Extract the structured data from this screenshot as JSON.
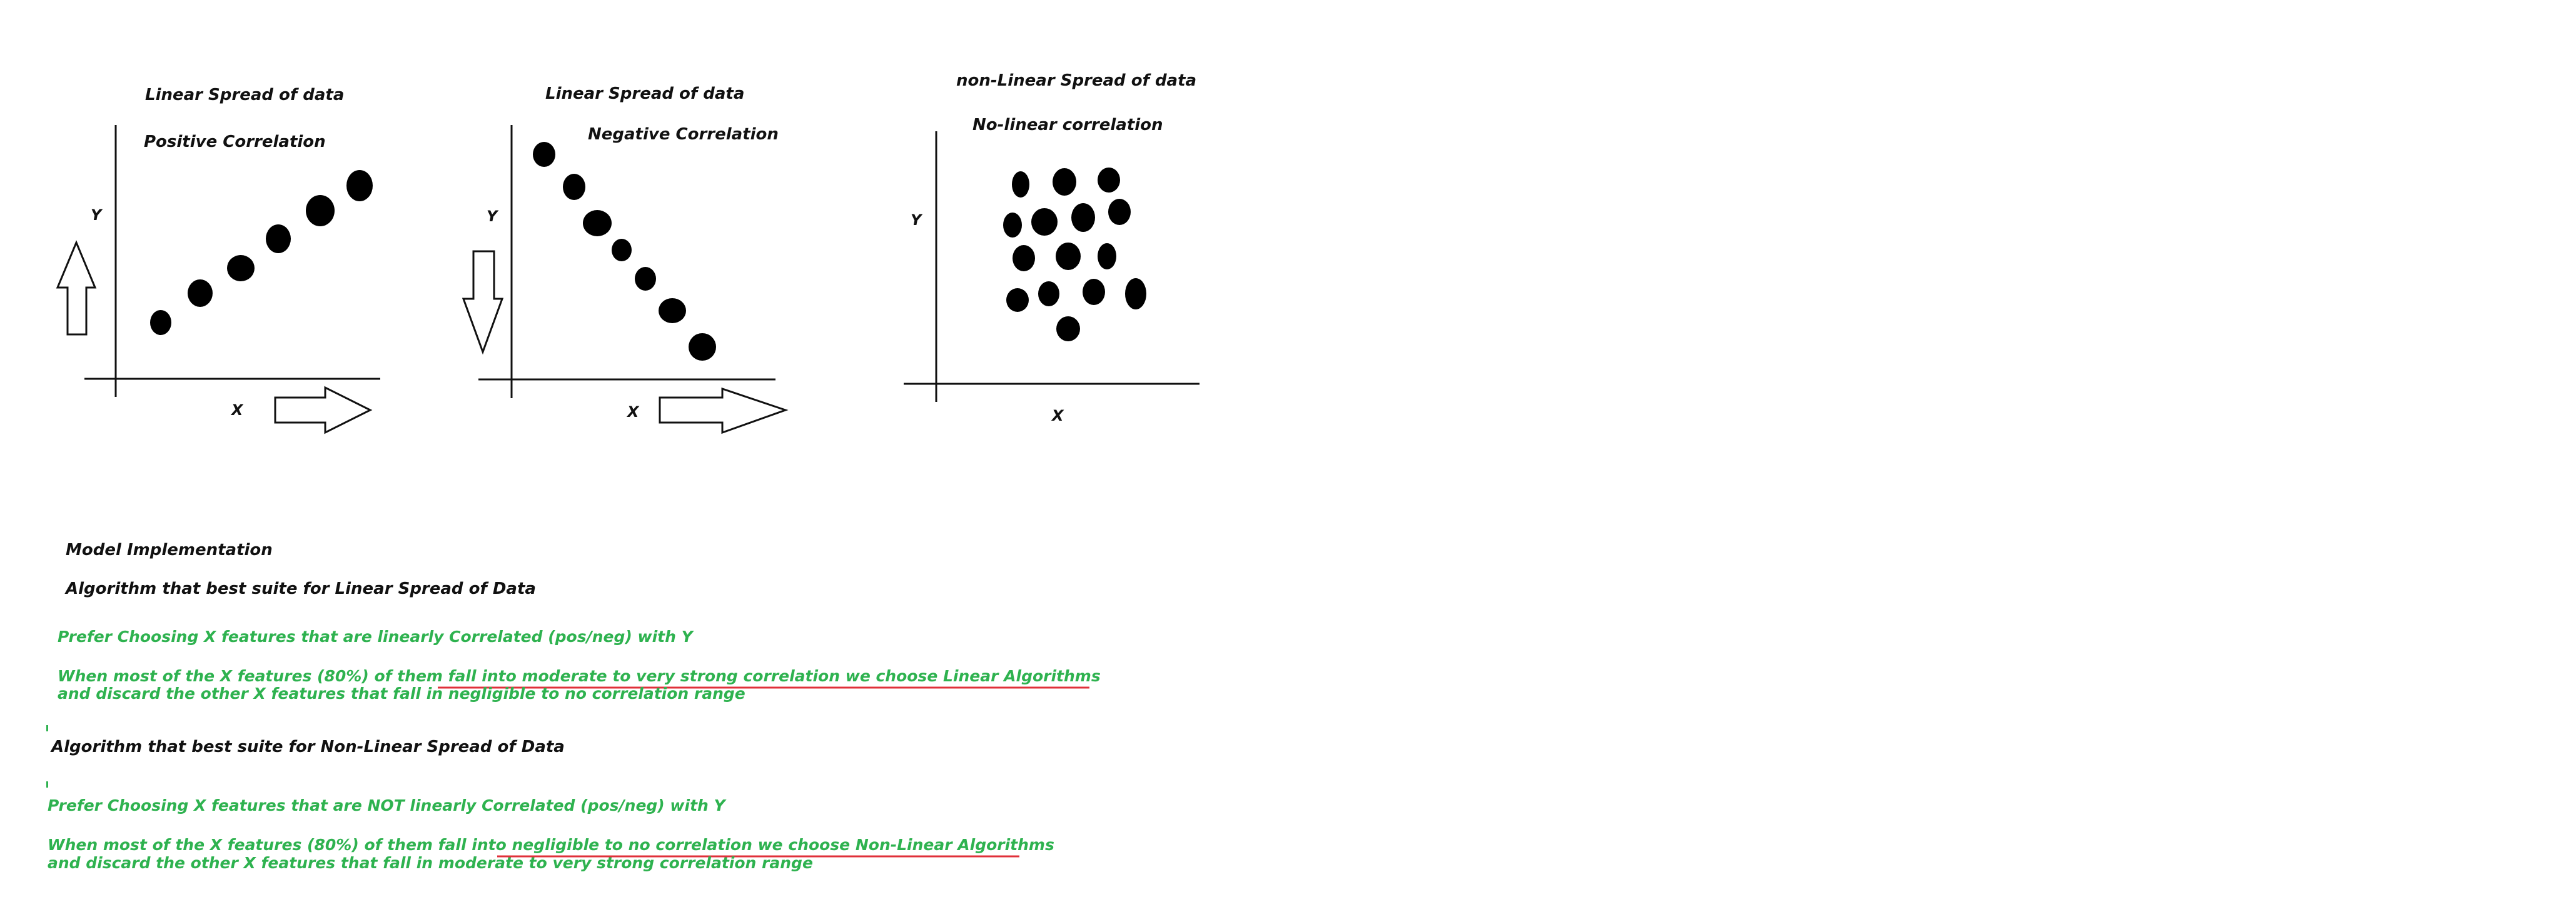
{
  "panels": [
    {
      "title": "Linear Spread of data",
      "subtitle": "Positive Correlation",
      "y_axis_label": "Y",
      "x_axis_label": "X",
      "y_arrow_direction": "up"
    },
    {
      "title": "Linear Spread of data",
      "subtitle": "Negative Correlation",
      "y_axis_label": "Y",
      "x_axis_label": "X",
      "y_arrow_direction": "down"
    },
    {
      "title": "non-Linear Spread of data",
      "subtitle": "No-linear correlation",
      "y_axis_label": "Y",
      "x_axis_label": "X",
      "y_arrow_direction": "none"
    }
  ],
  "notes": {
    "heading": "Model Implementation",
    "linear": {
      "heading": "Algorithm that best suite for Linear Spread of Data",
      "prefer": "Prefer Choosing X features that are linearly Correlated (pos/neg) with Y",
      "rule_prefix": "When most of the X features (80%) of them ",
      "rule_underlined": "fall into moderate to very strong correlation we choose Linear Algorithms",
      "rule_line2": "and discard the other X features that fall in negligible to no correlation range"
    },
    "nonlinear": {
      "heading": "Algorithm that best suite for Non-Linear Spread of Data",
      "prefer": "Prefer Choosing X features that are NOT linearly Correlated (pos/neg) with Y",
      "rule_prefix": "When most of the X features (80%) of them fall into ",
      "rule_underlined": "negligible to no correlation we choose Non-Linear Algorithms",
      "rule_line2": "and discard the other X features that fall in moderate to very strong correlation range"
    }
  },
  "colors": {
    "ink": "#111111",
    "note_green": "#2eb24f",
    "underline_red": "#e0303a"
  }
}
